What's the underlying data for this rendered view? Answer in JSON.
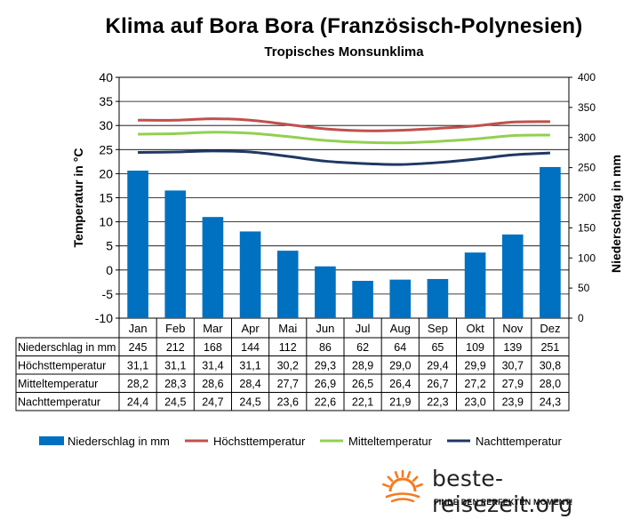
{
  "chart_data": {
    "type": "bar+line",
    "title": "Klima auf Bora Bora (Französisch-Polynesien)",
    "subtitle": "Tropisches Monsunklima",
    "ylabel_left": "Temperatur in °C",
    "ylabel_right": "Niederschlag in mm",
    "ylim_left": [
      -10,
      40
    ],
    "ylim_right": [
      0,
      400
    ],
    "yticks_left": [
      "40",
      "35",
      "30",
      "25",
      "20",
      "15",
      "10",
      "5",
      "0",
      "-5",
      "-10"
    ],
    "yticks_right": [
      "400",
      "350",
      "300",
      "250",
      "200",
      "150",
      "100",
      "50",
      "0"
    ],
    "categories": [
      "Jan",
      "Feb",
      "Mar",
      "Apr",
      "Mai",
      "Jun",
      "Jul",
      "Aug",
      "Sep",
      "Okt",
      "Nov",
      "Dez"
    ],
    "series": [
      {
        "name": "Niederschlag in mm",
        "type": "bar",
        "axis": "right",
        "color": "#0070C0",
        "values": [
          245,
          212,
          168,
          144,
          112,
          86,
          62,
          64,
          65,
          109,
          139,
          251
        ],
        "labels": [
          "245",
          "212",
          "168",
          "144",
          "112",
          "86",
          "62",
          "64",
          "65",
          "109",
          "139",
          "251"
        ]
      },
      {
        "name": "Höchsttemperatur",
        "type": "line",
        "axis": "left",
        "color": "#C0504D",
        "values": [
          31.1,
          31.1,
          31.4,
          31.1,
          30.2,
          29.3,
          28.9,
          29.0,
          29.4,
          29.9,
          30.7,
          30.8
        ],
        "labels": [
          "31,1",
          "31,1",
          "31,4",
          "31,1",
          "30,2",
          "29,3",
          "28,9",
          "29,0",
          "29,4",
          "29,9",
          "30,7",
          "30,8"
        ]
      },
      {
        "name": "Mitteltemperatur",
        "type": "line",
        "axis": "left",
        "color": "#92D050",
        "values": [
          28.2,
          28.3,
          28.6,
          28.4,
          27.7,
          26.9,
          26.5,
          26.4,
          26.7,
          27.2,
          27.9,
          28.0
        ],
        "labels": [
          "28,2",
          "28,3",
          "28,6",
          "28,4",
          "27,7",
          "26,9",
          "26,5",
          "26,4",
          "26,7",
          "27,2",
          "27,9",
          "28,0"
        ]
      },
      {
        "name": "Nachttemperatur",
        "type": "line",
        "axis": "left",
        "color": "#1F3864",
        "values": [
          24.4,
          24.5,
          24.7,
          24.5,
          23.6,
          22.6,
          22.1,
          21.9,
          22.3,
          23.0,
          23.9,
          24.3
        ],
        "labels": [
          "24,4",
          "24,5",
          "24,7",
          "24,5",
          "23,6",
          "22,6",
          "22,1",
          "21,9",
          "22,3",
          "23,0",
          "23,9",
          "24,3"
        ]
      }
    ],
    "grid": true,
    "legend": "bottom"
  },
  "brand": {
    "name": "beste-reisezeit.org",
    "slogan": "FINDE DEN PERFEKTEN MOMENT!",
    "logo_icon": "sun-icon",
    "logo_color": "#F47B20"
  }
}
